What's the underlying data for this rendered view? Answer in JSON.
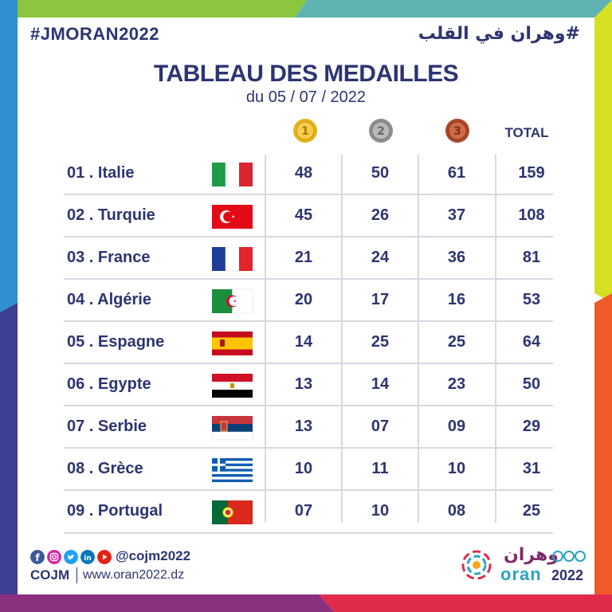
{
  "header": {
    "hashtag": "#JMORAN2022",
    "hashtag_ar": "#وهران في القلب"
  },
  "title": "TABLEAU DES MEDAILLES",
  "subtitle": "du 05 / 07 / 2022",
  "columns": {
    "gold_icon": "gold-medal-1",
    "silver_icon": "silver-medal-2",
    "bronze_icon": "bronze-medal-3",
    "total": "TOTAL"
  },
  "rows": [
    {
      "name": "01 . Italie",
      "flag": "italy-flag",
      "gold": "48",
      "silver": "50",
      "bronze": "61",
      "total": "159"
    },
    {
      "name": "02 . Turquie",
      "flag": "turkey-flag",
      "gold": "45",
      "silver": "26",
      "bronze": "37",
      "total": "108"
    },
    {
      "name": "03 . France",
      "flag": "france-flag",
      "gold": "21",
      "silver": "24",
      "bronze": "36",
      "total": "81"
    },
    {
      "name": "04 . Algérie",
      "flag": "algeria-flag",
      "gold": "20",
      "silver": "17",
      "bronze": "16",
      "total": "53"
    },
    {
      "name": "05 . Espagne",
      "flag": "spain-flag",
      "gold": "14",
      "silver": "25",
      "bronze": "25",
      "total": "64"
    },
    {
      "name": "06 . Egypte",
      "flag": "egypt-flag",
      "gold": "13",
      "silver": "14",
      "bronze": "23",
      "total": "50"
    },
    {
      "name": "07 . Serbie",
      "flag": "serbia-flag",
      "gold": "13",
      "silver": "07",
      "bronze": "09",
      "total": "29"
    },
    {
      "name": "08 . Grèce",
      "flag": "greece-flag",
      "gold": "10",
      "silver": "11",
      "bronze": "10",
      "total": "31"
    },
    {
      "name": "09 . Portugal",
      "flag": "portugal-flag",
      "gold": "07",
      "silver": "10",
      "bronze": "08",
      "total": "25"
    }
  ],
  "footer": {
    "social_icons": [
      "facebook-icon",
      "instagram-icon",
      "twitter-icon",
      "linkedin-icon",
      "youtube-icon"
    ],
    "handle": "@cojm2022",
    "org": "COJM",
    "website": "www.oran2022.dz",
    "logo_ar": "وهران",
    "logo_oran": "oran",
    "logo_year": "2022"
  },
  "colors": {
    "text": "#2d3472",
    "gold": "#e8b21c",
    "silver": "#9a9a9a",
    "bronze": "#b4552a"
  }
}
